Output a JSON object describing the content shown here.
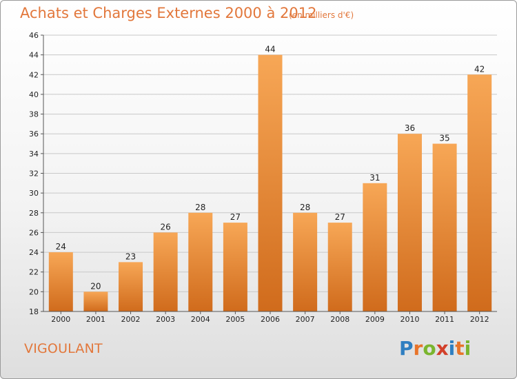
{
  "header": {
    "title": "Achats et Charges Externes 2000 à 2012",
    "unit": "(en milliers d'€)"
  },
  "footer": {
    "commune": "VIGOULANT",
    "logo": {
      "letters": [
        "P",
        "r",
        "o",
        "x",
        "i",
        "t",
        "i"
      ],
      "colors": [
        "#2f7fc1",
        "#e8742a",
        "#7ab52e",
        "#d2402a",
        "#2f7fc1",
        "#e8742a",
        "#7ab52e"
      ]
    }
  },
  "chart_data": {
    "type": "bar",
    "categories": [
      "2000",
      "2001",
      "2002",
      "2003",
      "2004",
      "2005",
      "2006",
      "2007",
      "2008",
      "2009",
      "2010",
      "2011",
      "2012"
    ],
    "values": [
      24,
      20,
      23,
      26,
      28,
      27,
      44,
      28,
      27,
      31,
      36,
      35,
      42
    ],
    "ylim": [
      18,
      46
    ],
    "yticks": [
      18,
      20,
      22,
      24,
      26,
      28,
      30,
      32,
      34,
      36,
      38,
      40,
      42,
      44,
      46
    ],
    "grid": true,
    "colors": {
      "bar_light": "#f7a756",
      "bar_dark": "#d06b1c",
      "grid": "#c8c8c8",
      "axis": "#555555"
    }
  }
}
